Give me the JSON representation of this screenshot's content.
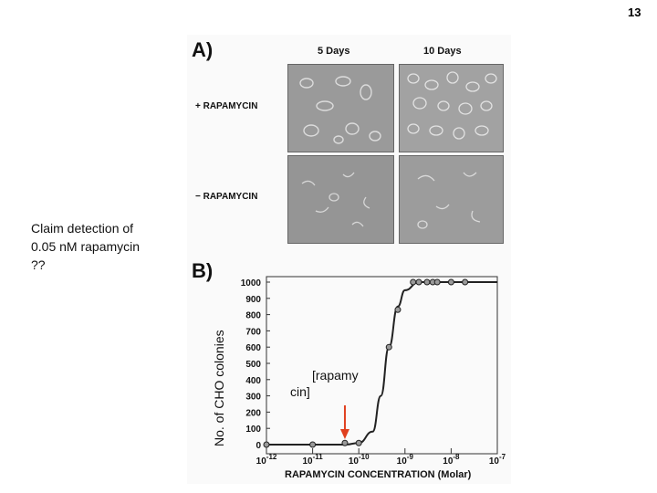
{
  "slide": {
    "number": "13"
  },
  "panel_a": {
    "letter": "A)",
    "columns": [
      "5 Days",
      "10 Days"
    ],
    "rows": [
      "+ RAPAMYCIN",
      "− RAPAMYCIN"
    ]
  },
  "panel_b": {
    "letter": "B)"
  },
  "annotation": {
    "lines": [
      "Claim detection of",
      "0.05 nM rapamycin",
      "??"
    ]
  },
  "inset_label": {
    "lines": [
      "[rapamy",
      "cin]"
    ]
  },
  "colors": {
    "arrow": "#e0401f",
    "curve": "#222222",
    "micrograph": "#8e8e8e"
  },
  "chart_data": {
    "type": "scatter",
    "title": "",
    "xlabel": "RAPAMYCIN CONCENTRATION (Molar)",
    "ylabel": "No. of CHO colonies",
    "x_scale": "log",
    "xlim": [
      1e-12,
      1e-07
    ],
    "ylim": [
      0,
      1000
    ],
    "x_ticks": [
      {
        "base": "10",
        "exp": "-12"
      },
      {
        "base": "10",
        "exp": "-11"
      },
      {
        "base": "10",
        "exp": "-10"
      },
      {
        "base": "10",
        "exp": "-9"
      },
      {
        "base": "10",
        "exp": "-8"
      },
      {
        "base": "10",
        "exp": "-7"
      }
    ],
    "y_ticks": [
      "0",
      "100",
      "200",
      "300",
      "400",
      "500",
      "600",
      "700",
      "800",
      "900",
      "1000"
    ],
    "points": [
      {
        "x": 1e-12,
        "y": 0
      },
      {
        "x": 1e-11,
        "y": 0
      },
      {
        "x": 5e-11,
        "y": 10
      },
      {
        "x": 1e-10,
        "y": 10
      },
      {
        "x": 4.5e-10,
        "y": 600
      },
      {
        "x": 7e-10,
        "y": 830
      },
      {
        "x": 1.5e-09,
        "y": 1000
      },
      {
        "x": 2e-09,
        "y": 1000
      },
      {
        "x": 3e-09,
        "y": 1000
      },
      {
        "x": 4e-09,
        "y": 1000
      },
      {
        "x": 5e-09,
        "y": 1000
      },
      {
        "x": 1e-08,
        "y": 1000
      },
      {
        "x": 2e-08,
        "y": 1000
      }
    ],
    "curve": [
      {
        "x": 1e-12,
        "y": 0
      },
      {
        "x": 5e-11,
        "y": 0
      },
      {
        "x": 1e-10,
        "y": 10
      },
      {
        "x": 2e-10,
        "y": 80
      },
      {
        "x": 3e-10,
        "y": 300
      },
      {
        "x": 4.5e-10,
        "y": 600
      },
      {
        "x": 7e-10,
        "y": 850
      },
      {
        "x": 1e-09,
        "y": 950
      },
      {
        "x": 2e-09,
        "y": 1000
      },
      {
        "x": 1e-07,
        "y": 1000
      }
    ],
    "arrow_x": 5e-11,
    "grid": false
  }
}
